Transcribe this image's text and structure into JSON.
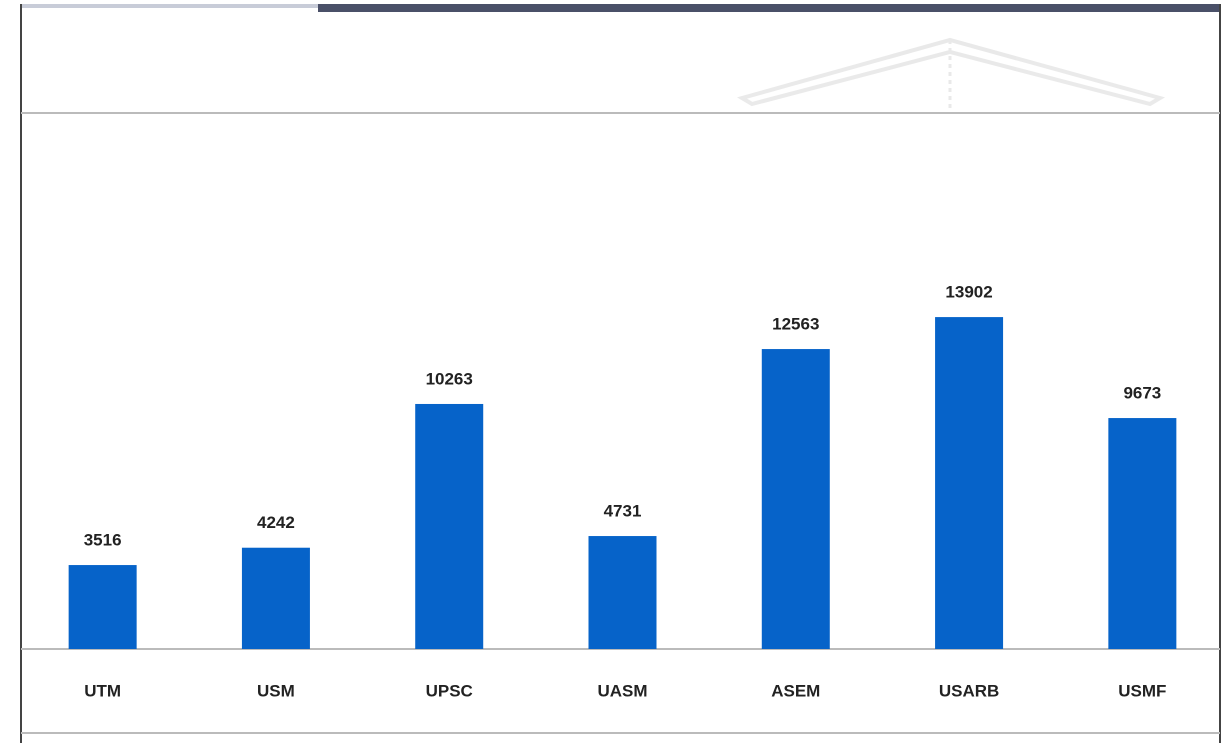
{
  "chart_data": {
    "type": "bar",
    "categories": [
      "UTM",
      "USM",
      "UPSC",
      "UASM",
      "ASEM",
      "USARB",
      "USMF"
    ],
    "values": [
      3516,
      4242,
      10263,
      4731,
      12563,
      13902,
      9673
    ],
    "color": "#0663c9",
    "ylim": [
      0,
      22450
    ]
  }
}
